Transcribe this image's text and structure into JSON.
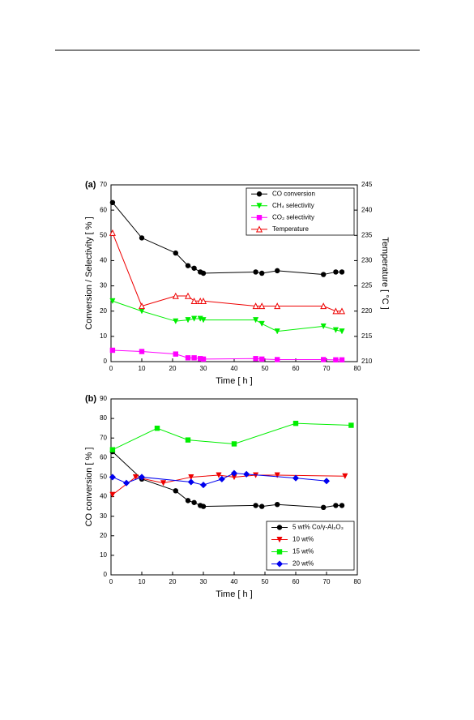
{
  "chart_data": [
    {
      "type": "line",
      "panel": "(a)",
      "xlabel": "Time [ h ]",
      "ylabel": "Conversion / Selectivity [ % ]",
      "y2label": "Temperature [ °C ]",
      "xlim": [
        0,
        80
      ],
      "xticks": [
        0,
        10,
        20,
        30,
        40,
        50,
        60,
        70,
        80
      ],
      "ylim": [
        0,
        70
      ],
      "yticks": [
        0,
        10,
        20,
        30,
        40,
        50,
        60,
        70
      ],
      "y2lim": [
        210,
        245
      ],
      "y2ticks": [
        210,
        215,
        220,
        225,
        230,
        235,
        240,
        245
      ],
      "legend": "upper right",
      "series": [
        {
          "name": "CO conversion",
          "color": "#000000",
          "marker": "circle",
          "x": [
            0.5,
            10,
            21,
            25,
            27,
            29,
            30,
            47,
            49,
            54,
            69,
            73,
            75
          ],
          "values": [
            63,
            49,
            43,
            38,
            37,
            35.5,
            35,
            35.5,
            35,
            36,
            34.5,
            35.5,
            35.5
          ]
        },
        {
          "name": "CH₄ selectivity",
          "color": "#00ee00",
          "marker": "triangle-down",
          "x": [
            0.5,
            10,
            21,
            25,
            27,
            29,
            30,
            47,
            49,
            54,
            69,
            73,
            75
          ],
          "values": [
            24,
            20,
            16,
            16.5,
            17,
            17,
            16.5,
            16.5,
            15,
            12,
            14,
            12.5,
            12
          ]
        },
        {
          "name": "CO₂ selectivity",
          "color": "#ff00ff",
          "marker": "square",
          "x": [
            0.5,
            10,
            21,
            25,
            27,
            29,
            30,
            47,
            49,
            54,
            69,
            73,
            75
          ],
          "values": [
            4.5,
            4,
            3,
            1.5,
            1.5,
            1.2,
            1,
            1.2,
            1,
            0.8,
            0.8,
            0.7,
            0.7
          ]
        },
        {
          "name": "Temperature",
          "color": "#ee0000",
          "marker": "triangle-open",
          "axis": "y2",
          "x": [
            0.5,
            10,
            21,
            25,
            27,
            29,
            30,
            47,
            49,
            54,
            69,
            73,
            75
          ],
          "values": [
            235.5,
            221,
            223,
            223,
            222,
            222,
            222,
            221,
            221,
            221,
            221,
            220,
            220
          ]
        }
      ]
    },
    {
      "type": "line",
      "panel": "(b)",
      "xlabel": "Time [ h ]",
      "ylabel": "CO conversion [ % ]",
      "xlim": [
        0,
        80
      ],
      "xticks": [
        0,
        10,
        20,
        30,
        40,
        50,
        60,
        70,
        80
      ],
      "ylim": [
        0,
        90
      ],
      "yticks": [
        0,
        10,
        20,
        30,
        40,
        50,
        60,
        70,
        80,
        90
      ],
      "legend": "lower right",
      "series": [
        {
          "name": "5 wt% Co/γ-Al₂O₃",
          "color": "#000000",
          "marker": "circle",
          "x": [
            0.5,
            10,
            21,
            25,
            27,
            29,
            30,
            47,
            49,
            54,
            69,
            73,
            75
          ],
          "values": [
            63,
            49,
            43,
            38,
            37,
            35.5,
            35,
            35.5,
            35,
            36,
            34.5,
            35.5,
            35.5
          ]
        },
        {
          "name": "10 wt%",
          "color": "#ee0000",
          "marker": "triangle-down",
          "x": [
            0.5,
            8,
            17,
            26,
            35,
            40,
            47,
            54,
            76
          ],
          "values": [
            41,
            50,
            47,
            50,
            51,
            50,
            51,
            51,
            50.5
          ]
        },
        {
          "name": "15 wt%",
          "color": "#00ee00",
          "marker": "square",
          "x": [
            0.5,
            15,
            25,
            40,
            60,
            78
          ],
          "values": [
            64,
            75,
            69,
            67,
            77.5,
            76.5
          ]
        },
        {
          "name": "20 wt%",
          "color": "#0000ee",
          "marker": "diamond",
          "x": [
            0.5,
            5,
            10,
            26,
            30,
            36,
            40,
            44,
            60,
            70
          ],
          "values": [
            50,
            47,
            50,
            47.5,
            46,
            49,
            52,
            51.5,
            49.5,
            48
          ]
        }
      ]
    }
  ]
}
